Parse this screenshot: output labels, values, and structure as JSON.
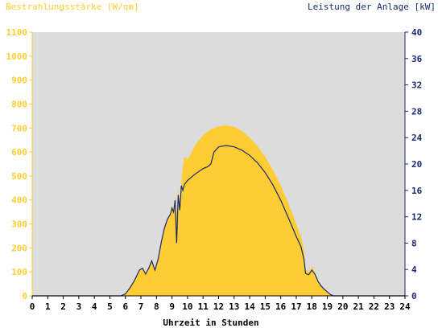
{
  "chart_data": {
    "type": "area",
    "left_axis_label": "Bestrahlungsstärke [W/qm]",
    "right_axis_label": "Leistung der Anlage [kW]",
    "xlabel": "Uhrzeit in Stunden",
    "left_ylim": [
      0,
      1100
    ],
    "right_ylim": [
      0,
      40
    ],
    "xlim": [
      0,
      24
    ],
    "left_ticks": [
      0,
      100,
      200,
      300,
      400,
      500,
      600,
      700,
      800,
      900,
      1000,
      1100
    ],
    "right_ticks": [
      0,
      4,
      8,
      12,
      16,
      20,
      24,
      28,
      32,
      36,
      40
    ],
    "x_ticks": [
      0,
      1,
      2,
      3,
      4,
      5,
      6,
      7,
      8,
      9,
      10,
      11,
      12,
      13,
      14,
      15,
      16,
      17,
      18,
      19,
      20,
      21,
      22,
      23,
      24
    ],
    "grid": false,
    "series": [
      {
        "name": "Bestrahlungsstärke [W/qm]",
        "axis": "left",
        "type": "area",
        "color": "#ffcc33",
        "points": [
          [
            0,
            0
          ],
          [
            5.7,
            0
          ],
          [
            6.0,
            10
          ],
          [
            6.3,
            40
          ],
          [
            6.6,
            70
          ],
          [
            6.9,
            110
          ],
          [
            7.1,
            120
          ],
          [
            7.3,
            90
          ],
          [
            7.5,
            120
          ],
          [
            7.7,
            150
          ],
          [
            7.9,
            110
          ],
          [
            8.1,
            160
          ],
          [
            8.3,
            220
          ],
          [
            8.5,
            280
          ],
          [
            8.7,
            320
          ],
          [
            8.9,
            350
          ],
          [
            9.0,
            380
          ],
          [
            9.1,
            360
          ],
          [
            9.2,
            420
          ],
          [
            9.3,
            320
          ],
          [
            9.4,
            450
          ],
          [
            9.5,
            380
          ],
          [
            9.6,
            470
          ],
          [
            9.7,
            540
          ],
          [
            9.8,
            580
          ],
          [
            10.0,
            570
          ],
          [
            10.2,
            590
          ],
          [
            10.5,
            630
          ],
          [
            11.0,
            670
          ],
          [
            11.5,
            695
          ],
          [
            12.0,
            707
          ],
          [
            12.5,
            712
          ],
          [
            13.0,
            705
          ],
          [
            13.5,
            688
          ],
          [
            14.0,
            660
          ],
          [
            14.5,
            625
          ],
          [
            15.0,
            580
          ],
          [
            15.5,
            525
          ],
          [
            16.0,
            460
          ],
          [
            16.5,
            385
          ],
          [
            17.0,
            300
          ],
          [
            17.3,
            250
          ],
          [
            17.5,
            190
          ],
          [
            17.6,
            110
          ],
          [
            17.8,
            100
          ],
          [
            18.0,
            120
          ],
          [
            18.2,
            100
          ],
          [
            18.4,
            60
          ],
          [
            18.6,
            40
          ],
          [
            18.8,
            25
          ],
          [
            19.0,
            15
          ],
          [
            19.2,
            5
          ],
          [
            19.4,
            0
          ],
          [
            24,
            0
          ]
        ]
      },
      {
        "name": "Leistung der Anlage [kW]",
        "axis": "right",
        "type": "line",
        "color": "#1a2a6c",
        "points": [
          [
            0,
            0
          ],
          [
            5.7,
            0
          ],
          [
            6.0,
            0.3
          ],
          [
            6.3,
            1.2
          ],
          [
            6.6,
            2.4
          ],
          [
            6.9,
            3.9
          ],
          [
            7.1,
            4.2
          ],
          [
            7.3,
            3.3
          ],
          [
            7.5,
            4.2
          ],
          [
            7.7,
            5.3
          ],
          [
            7.9,
            3.9
          ],
          [
            8.1,
            5.5
          ],
          [
            8.3,
            8.0
          ],
          [
            8.5,
            10.2
          ],
          [
            8.7,
            11.6
          ],
          [
            8.9,
            12.4
          ],
          [
            9.0,
            13.3
          ],
          [
            9.1,
            12.7
          ],
          [
            9.2,
            14.5
          ],
          [
            9.3,
            8.0
          ],
          [
            9.4,
            15.3
          ],
          [
            9.5,
            13.0
          ],
          [
            9.6,
            16.7
          ],
          [
            9.7,
            16.0
          ],
          [
            9.8,
            16.9
          ],
          [
            10.0,
            17.5
          ],
          [
            10.5,
            18.5
          ],
          [
            11.0,
            19.3
          ],
          [
            11.3,
            19.6
          ],
          [
            11.5,
            20.0
          ],
          [
            11.7,
            21.8
          ],
          [
            12.0,
            22.6
          ],
          [
            12.5,
            22.8
          ],
          [
            13.0,
            22.6
          ],
          [
            13.5,
            22.1
          ],
          [
            14.0,
            21.3
          ],
          [
            14.5,
            20.2
          ],
          [
            15.0,
            18.7
          ],
          [
            15.5,
            16.8
          ],
          [
            16.0,
            14.5
          ],
          [
            16.5,
            11.8
          ],
          [
            17.0,
            9.0
          ],
          [
            17.3,
            7.5
          ],
          [
            17.5,
            5.5
          ],
          [
            17.6,
            3.4
          ],
          [
            17.8,
            3.2
          ],
          [
            18.0,
            3.9
          ],
          [
            18.2,
            3.3
          ],
          [
            18.4,
            2.2
          ],
          [
            18.6,
            1.5
          ],
          [
            18.8,
            1.0
          ],
          [
            19.0,
            0.6
          ],
          [
            19.2,
            0.2
          ],
          [
            19.4,
            0
          ],
          [
            24,
            0
          ]
        ]
      }
    ]
  }
}
